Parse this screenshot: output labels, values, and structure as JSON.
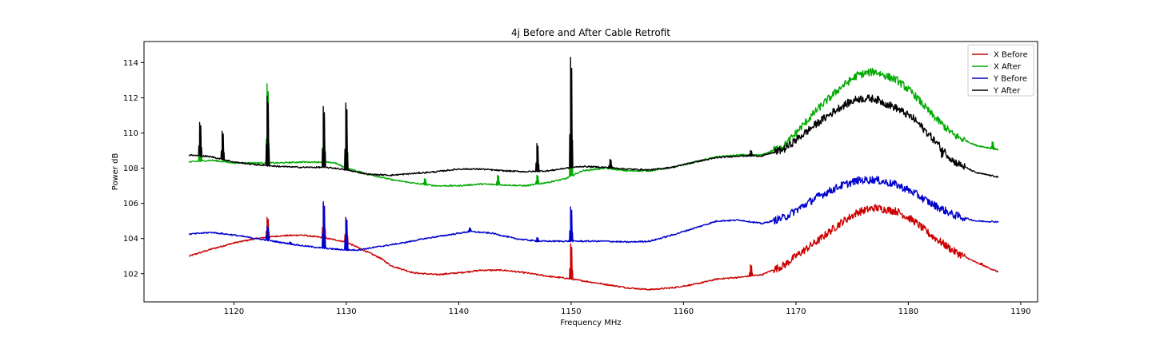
{
  "chart_data": {
    "type": "line",
    "title": "4j Before and After Cable Retrofit",
    "xlabel": "Frequency MHz",
    "ylabel": "Power dB",
    "xlim": [
      1112,
      1191.5
    ],
    "ylim": [
      100.4,
      115.2
    ],
    "x_ticks": [
      1120,
      1130,
      1140,
      1150,
      1160,
      1170,
      1180,
      1190
    ],
    "y_ticks": [
      102,
      104,
      106,
      108,
      110,
      112,
      114
    ],
    "grid": false,
    "legend_position": "top-right",
    "series": [
      {
        "name": "X Before",
        "color": "#cc0000",
        "points": [
          [
            1116,
            103.0
          ],
          [
            1118,
            103.4
          ],
          [
            1120,
            103.75
          ],
          [
            1122,
            104.0
          ],
          [
            1124,
            104.15
          ],
          [
            1126,
            104.2
          ],
          [
            1128,
            104.05
          ],
          [
            1130,
            103.8
          ],
          [
            1132,
            103.2
          ],
          [
            1133,
            102.9
          ],
          [
            1134,
            102.45
          ],
          [
            1136,
            102.05
          ],
          [
            1138,
            101.95
          ],
          [
            1140,
            102.05
          ],
          [
            1142,
            102.2
          ],
          [
            1144,
            102.2
          ],
          [
            1146,
            102.05
          ],
          [
            1148,
            101.85
          ],
          [
            1149.5,
            101.75
          ],
          [
            1151,
            101.6
          ],
          [
            1153,
            101.4
          ],
          [
            1155,
            101.2
          ],
          [
            1157,
            101.1
          ],
          [
            1159,
            101.2
          ],
          [
            1161,
            101.4
          ],
          [
            1163,
            101.7
          ],
          [
            1165,
            101.8
          ],
          [
            1167,
            101.95
          ],
          [
            1169,
            102.5
          ],
          [
            1170,
            103.0
          ],
          [
            1172,
            103.9
          ],
          [
            1174,
            104.9
          ],
          [
            1175.5,
            105.5
          ],
          [
            1177,
            105.75
          ],
          [
            1179,
            105.55
          ],
          [
            1180.5,
            105.0
          ],
          [
            1182,
            104.2
          ],
          [
            1184,
            103.3
          ],
          [
            1186,
            102.65
          ],
          [
            1188,
            102.1
          ]
        ],
        "peaks": [
          [
            1123,
            105.2
          ],
          [
            1128,
            106.0
          ],
          [
            1130,
            105.2
          ],
          [
            1133,
            102.9
          ],
          [
            1150,
            103.7
          ],
          [
            1166,
            102.5
          ],
          [
            1186.5,
            102.6
          ]
        ]
      },
      {
        "name": "X After",
        "color": "#00aa00",
        "points": [
          [
            1116,
            108.35
          ],
          [
            1118,
            108.45
          ],
          [
            1120,
            108.3
          ],
          [
            1122,
            108.3
          ],
          [
            1124,
            108.3
          ],
          [
            1126,
            108.35
          ],
          [
            1128,
            108.35
          ],
          [
            1129,
            108.3
          ],
          [
            1130,
            108.0
          ],
          [
            1132,
            107.65
          ],
          [
            1134,
            107.35
          ],
          [
            1136,
            107.15
          ],
          [
            1138,
            107.0
          ],
          [
            1140,
            107.0
          ],
          [
            1142,
            107.1
          ],
          [
            1144,
            107.05
          ],
          [
            1146,
            107.0
          ],
          [
            1148,
            107.2
          ],
          [
            1149.5,
            107.4
          ],
          [
            1151,
            107.85
          ],
          [
            1153,
            108.0
          ],
          [
            1155,
            107.85
          ],
          [
            1157,
            107.85
          ],
          [
            1159,
            108.05
          ],
          [
            1161,
            108.35
          ],
          [
            1163,
            108.65
          ],
          [
            1165,
            108.75
          ],
          [
            1167,
            108.75
          ],
          [
            1169,
            109.3
          ],
          [
            1170,
            110.0
          ],
          [
            1172,
            111.4
          ],
          [
            1174,
            112.6
          ],
          [
            1175.5,
            113.3
          ],
          [
            1177,
            113.5
          ],
          [
            1179,
            113.0
          ],
          [
            1180.5,
            112.2
          ],
          [
            1182,
            111.1
          ],
          [
            1184,
            109.9
          ],
          [
            1186,
            109.3
          ],
          [
            1188,
            109.05
          ]
        ],
        "peaks": [
          [
            1117,
            110.1
          ],
          [
            1123,
            112.8
          ],
          [
            1128,
            111.0
          ],
          [
            1130,
            111.7
          ],
          [
            1137,
            107.4
          ],
          [
            1143.5,
            107.6
          ],
          [
            1147,
            107.6
          ],
          [
            1150,
            110.3
          ],
          [
            1187.5,
            109.5
          ]
        ]
      },
      {
        "name": "Y Before",
        "color": "#0000cc",
        "points": [
          [
            1116,
            104.25
          ],
          [
            1118,
            104.35
          ],
          [
            1120,
            104.2
          ],
          [
            1122,
            104.0
          ],
          [
            1124,
            103.8
          ],
          [
            1126,
            103.6
          ],
          [
            1128,
            103.45
          ],
          [
            1129,
            103.4
          ],
          [
            1130,
            103.35
          ],
          [
            1131,
            103.35
          ],
          [
            1133,
            103.55
          ],
          [
            1135,
            103.75
          ],
          [
            1137,
            104.0
          ],
          [
            1139,
            104.2
          ],
          [
            1141,
            104.4
          ],
          [
            1143,
            104.3
          ],
          [
            1145,
            104.0
          ],
          [
            1147,
            103.85
          ],
          [
            1149.5,
            103.85
          ],
          [
            1151,
            103.85
          ],
          [
            1153,
            103.85
          ],
          [
            1155,
            103.8
          ],
          [
            1157,
            103.85
          ],
          [
            1159,
            104.2
          ],
          [
            1161,
            104.6
          ],
          [
            1163,
            105.0
          ],
          [
            1165,
            105.05
          ],
          [
            1167,
            104.85
          ],
          [
            1169,
            105.2
          ],
          [
            1170,
            105.6
          ],
          [
            1172,
            106.4
          ],
          [
            1174,
            107.0
          ],
          [
            1175.5,
            107.3
          ],
          [
            1177,
            107.35
          ],
          [
            1179,
            107.05
          ],
          [
            1180.5,
            106.6
          ],
          [
            1182,
            106.0
          ],
          [
            1184,
            105.35
          ],
          [
            1186,
            105.0
          ],
          [
            1188,
            104.95
          ]
        ],
        "peaks": [
          [
            1123,
            104.7
          ],
          [
            1125,
            103.8
          ],
          [
            1128,
            106.1
          ],
          [
            1130,
            105.2
          ],
          [
            1141,
            104.6
          ],
          [
            1147,
            104.05
          ],
          [
            1150,
            105.8
          ]
        ]
      },
      {
        "name": "Y After",
        "color": "#000000",
        "points": [
          [
            1116,
            108.75
          ],
          [
            1118,
            108.65
          ],
          [
            1120,
            108.35
          ],
          [
            1122,
            108.2
          ],
          [
            1124,
            108.1
          ],
          [
            1126,
            108.05
          ],
          [
            1128,
            108.05
          ],
          [
            1129,
            108.0
          ],
          [
            1130,
            107.9
          ],
          [
            1132,
            107.65
          ],
          [
            1134,
            107.6
          ],
          [
            1136,
            107.7
          ],
          [
            1138,
            107.8
          ],
          [
            1140,
            107.95
          ],
          [
            1142,
            107.95
          ],
          [
            1144,
            107.85
          ],
          [
            1146,
            107.8
          ],
          [
            1148,
            107.85
          ],
          [
            1149.5,
            108.0
          ],
          [
            1151,
            108.1
          ],
          [
            1153,
            108.05
          ],
          [
            1155,
            107.95
          ],
          [
            1157,
            107.9
          ],
          [
            1159,
            108.05
          ],
          [
            1161,
            108.35
          ],
          [
            1163,
            108.6
          ],
          [
            1165,
            108.7
          ],
          [
            1167,
            108.7
          ],
          [
            1169,
            109.1
          ],
          [
            1170,
            109.6
          ],
          [
            1172,
            110.6
          ],
          [
            1174,
            111.5
          ],
          [
            1175.5,
            111.95
          ],
          [
            1177,
            111.95
          ],
          [
            1179,
            111.4
          ],
          [
            1180.5,
            110.8
          ],
          [
            1182,
            109.8
          ],
          [
            1184,
            108.4
          ],
          [
            1186,
            107.75
          ],
          [
            1188,
            107.5
          ]
        ],
        "peaks": [
          [
            1117,
            110.6
          ],
          [
            1119,
            110.1
          ],
          [
            1123,
            112.1
          ],
          [
            1128,
            111.5
          ],
          [
            1130,
            111.7
          ],
          [
            1147,
            109.4
          ],
          [
            1150,
            114.3
          ],
          [
            1153.5,
            108.5
          ],
          [
            1166,
            109.0
          ],
          [
            1183,
            108.6
          ]
        ]
      }
    ]
  }
}
